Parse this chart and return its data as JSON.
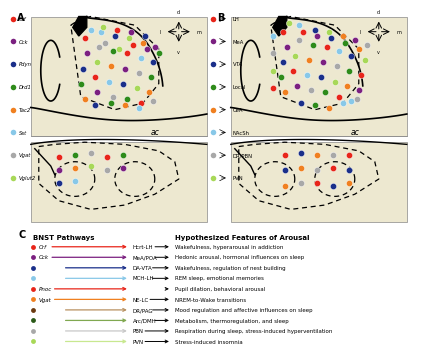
{
  "bg_color": "#ede8d0",
  "white_bg": "#ffffff",
  "legend_A": {
    "Crf": "#e8251a",
    "Cck": "#7b2080",
    "Pdyn": "#1a2f8a",
    "Drd1": "#2e8b1a",
    "Tac2": "#f08020",
    "Sst": "#88c8e8",
    "Vgat": "#a8a8a8",
    "Vglut2": "#a8d858"
  },
  "legend_B": {
    "LH": "#e8251a",
    "MeA": "#7b2080",
    "VTA": "#1a2f8a",
    "Local": "#2e8b1a",
    "CeA": "#f08020",
    "NAcSh": "#88c8e8",
    "DR/PBN": "#a8a8a8",
    "PVN": "#a8d858"
  },
  "pathways": [
    {
      "dot_color": "#e8251a",
      "label": "Crf",
      "italic": true,
      "line_color": "#e8251a",
      "target": "Hcrt-LH",
      "effect": "Wakefulness, hyperarousal in addiction"
    },
    {
      "dot_color": "#7b2080",
      "label": "Cck",
      "italic": true,
      "line_color": "#7b2080",
      "target": "MeA/POA",
      "effect": "Hedonic arousal, hormonal influences on sleep"
    },
    {
      "dot_color": "#1a2f8a",
      "label": "",
      "italic": false,
      "line_color": "#1a2f8a",
      "target": "DA-VTA",
      "effect": "Wakefulness, regulation of nest building"
    },
    {
      "dot_color": "#88c8e8",
      "label": "",
      "italic": false,
      "line_color": "#88c8e8",
      "target": "MCH-LH",
      "effect": "REM sleep, emotional memories"
    },
    {
      "dot_color": "#e8251a",
      "label": "Pnoc",
      "italic": true,
      "line_color": "#e8251a",
      "target": "",
      "effect": "Pupil dilation, behavioral arousal"
    },
    {
      "dot_color": "#f08020",
      "label": "Vgat",
      "italic": true,
      "line_color": "#f08020",
      "target": "NE-LC",
      "effect": "NREM-to-Wake transitions"
    },
    {
      "dot_color": "#6b3a10",
      "label": "",
      "italic": false,
      "line_color": "#b89060",
      "target": "DR/PAG",
      "effect": "Mood regulation and affective influences on sleep"
    },
    {
      "dot_color": "#2a5a18",
      "label": "",
      "italic": false,
      "line_color": "#80a850",
      "target": "Arc/DMH",
      "effect": "Metabolism, thermoregulation, and sleep"
    },
    {
      "dot_color": "#a8a8a8",
      "label": "",
      "italic": false,
      "line_color": "#c8c8c8",
      "target": "PBN",
      "effect": "Respiration during sleep, stress-induced hyperventilation"
    },
    {
      "dot_color": "#a8d858",
      "label": "",
      "italic": false,
      "line_color": "#c8e890",
      "target": "PVN",
      "effect": "Stress-induced insomnia"
    }
  ]
}
